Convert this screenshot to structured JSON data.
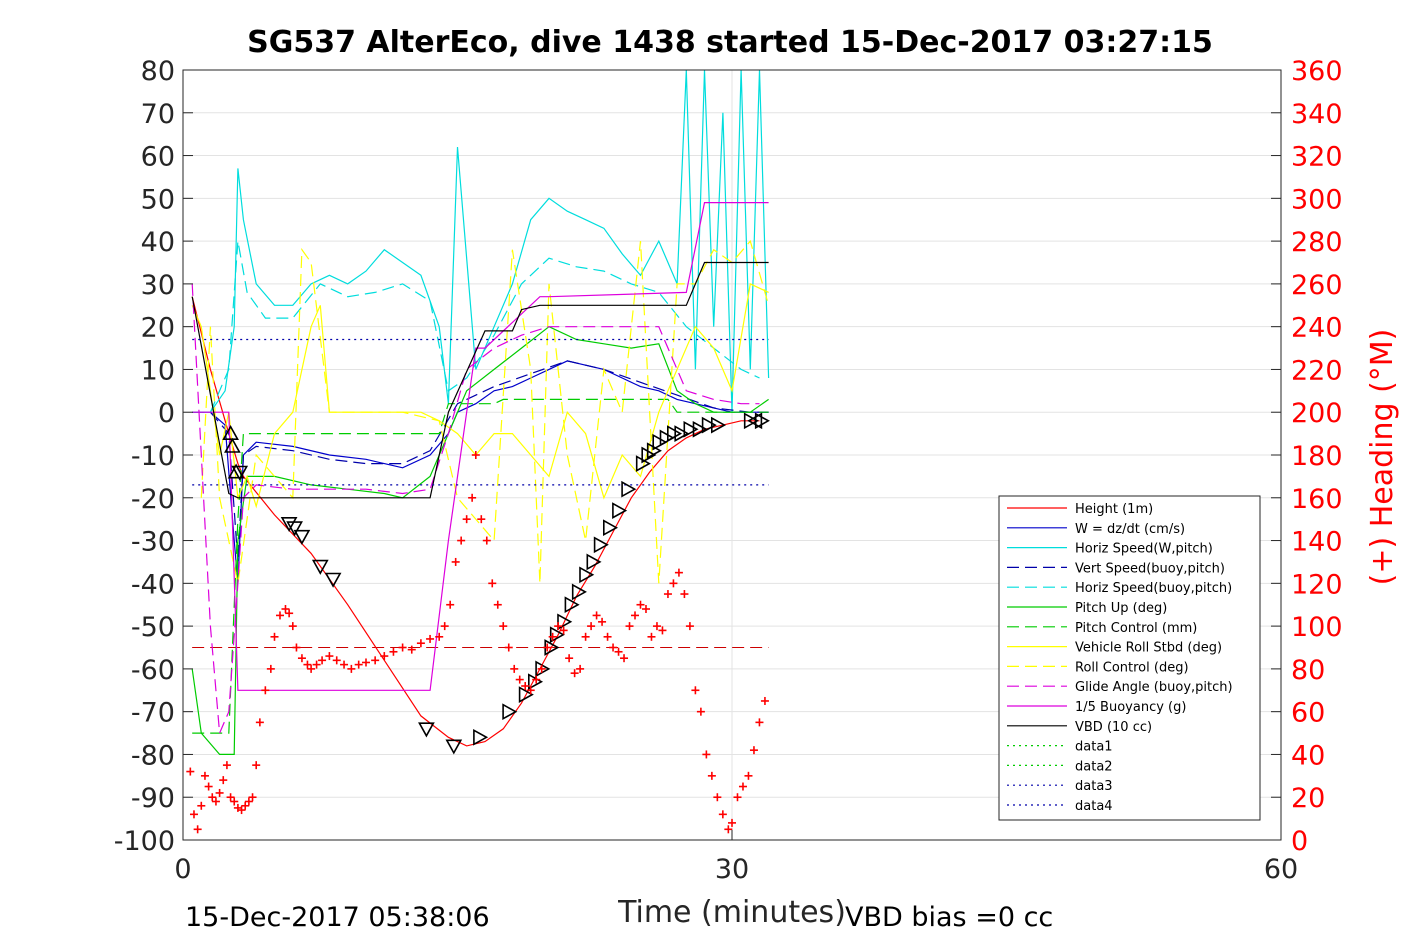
{
  "chart_data": {
    "type": "line",
    "title": "SG537 AlterEco, dive 1438 started 15-Dec-2017 03:27:15",
    "xlabel": "Time (minutes)",
    "ylabel": "",
    "y2label": "(+) Heading (°M)",
    "xlim": [
      0,
      60
    ],
    "ylim": [
      -100,
      80
    ],
    "y2lim": [
      0,
      360
    ],
    "x_ticks": [
      "0",
      "30",
      "60"
    ],
    "y_ticks": [
      "80",
      "70",
      "60",
      "50",
      "40",
      "30",
      "20",
      "10",
      "0",
      "-10",
      "-20",
      "-30",
      "-40",
      "-50",
      "-60",
      "-70",
      "-80",
      "-90",
      "-100"
    ],
    "y2_ticks": [
      "360",
      "340",
      "320",
      "300",
      "280",
      "260",
      "240",
      "220",
      "200",
      "180",
      "160",
      "140",
      "120",
      "100",
      "80",
      "60",
      "40",
      "20",
      "0"
    ],
    "grid": true,
    "legend_position": "bottom-right",
    "footer_left": "15-Dec-2017 05:38:06",
    "footer_right": "VBD bias =0 cc",
    "series": [
      {
        "name": "Height (1m)",
        "color": "#ff0000",
        "dash": "solid",
        "x": [
          0.5,
          1.5,
          2.5,
          3.0,
          3.3,
          5.0,
          7.0,
          9.0,
          11.0,
          13.0,
          14.5,
          15.5,
          16.5,
          17.5,
          18.5,
          19.5,
          20.5,
          21.5,
          22.5,
          23.5,
          24.5,
          25.5,
          26.5,
          27.5,
          28.5,
          29.5,
          30.5,
          31.5
        ],
        "y": [
          27,
          10,
          -5,
          -12,
          -15,
          -24,
          -33,
          -45,
          -58,
          -71,
          -76,
          -78,
          -77,
          -74,
          -68,
          -60,
          -52,
          -43,
          -36,
          -28,
          -20,
          -14,
          -9,
          -6,
          -4,
          -3,
          -2,
          -2
        ]
      },
      {
        "name": "W = dz/dt (cm/s)",
        "color": "#0000cc",
        "dash": "solid",
        "x": [
          0.5,
          1.5,
          2.3,
          2.8,
          3.0,
          3.3,
          4.0,
          6.0,
          8.0,
          10.0,
          11.0,
          12.0,
          13.5,
          14.5,
          15.0,
          16.0,
          17.0,
          18.0,
          19.0,
          20.0,
          21.0,
          22.0,
          23.0,
          24.0,
          25.0,
          26.0,
          27.0,
          28.0,
          29.0,
          30.0,
          31.0,
          32.0
        ],
        "y": [
          0,
          0,
          -3,
          -30,
          -40,
          -10,
          -7,
          -8,
          -10,
          -11,
          -12,
          -13,
          -10,
          -5,
          0,
          2,
          5,
          6,
          8,
          10,
          12,
          11,
          10,
          8,
          6,
          5,
          3,
          2,
          1,
          0,
          0,
          0
        ]
      },
      {
        "name": "Horiz Speed(W,pitch)",
        "color": "#00dddd",
        "dash": "solid",
        "x": [
          0.5,
          1.5,
          2.3,
          2.8,
          3.0,
          3.3,
          4.0,
          5.0,
          6.0,
          7.0,
          8.0,
          9.0,
          10.0,
          11.0,
          12.0,
          13.0,
          14.0,
          14.5,
          15.0,
          16.0,
          17.0,
          18.0,
          19.0,
          20.0,
          21.0,
          22.0,
          23.0,
          24.0,
          25.0,
          26.0,
          27.0,
          27.5,
          28.0,
          28.5,
          29.0,
          29.5,
          30.0,
          30.5,
          31.0,
          31.5,
          32.0
        ],
        "y": [
          0,
          0,
          5,
          20,
          57,
          45,
          30,
          25,
          25,
          30,
          32,
          30,
          33,
          38,
          35,
          32,
          20,
          2,
          62,
          10,
          20,
          30,
          45,
          50,
          47,
          45,
          43,
          37,
          32,
          40,
          30,
          80,
          10,
          80,
          20,
          70,
          0,
          80,
          10,
          80,
          8
        ]
      },
      {
        "name": "Vert Speed(buoy,pitch)",
        "color": "#0000aa",
        "dash": "dashed",
        "x": [
          0.5,
          1.5,
          2.5,
          3.0,
          3.3,
          4.0,
          6.0,
          8.0,
          10.0,
          12.0,
          13.5,
          15.0,
          17.0,
          19.0,
          21.0,
          23.0,
          25.0,
          27.0,
          29.0,
          31.0,
          32.0
        ],
        "y": [
          0,
          0,
          -5,
          -35,
          -10,
          -8,
          -9,
          -11,
          -12,
          -12,
          -9,
          2,
          6,
          9,
          12,
          10,
          7,
          4,
          1,
          0,
          0
        ]
      },
      {
        "name": "Horiz Speed(buoy,pitch)",
        "color": "#00dddd",
        "dash": "dashed",
        "x": [
          0.5,
          1.5,
          2.5,
          3.0,
          3.5,
          4.5,
          6.0,
          7.5,
          9.0,
          10.5,
          12.0,
          13.5,
          14.5,
          15.5,
          17.0,
          18.5,
          20.0,
          21.5,
          23.0,
          24.5,
          26.0,
          27.5,
          29.0,
          30.5,
          31.5
        ],
        "y": [
          0,
          0,
          10,
          40,
          28,
          22,
          22,
          30,
          27,
          28,
          30,
          26,
          5,
          8,
          18,
          30,
          36,
          34,
          33,
          30,
          28,
          20,
          15,
          10,
          8
        ]
      },
      {
        "name": "Pitch Up (deg)",
        "color": "#00cc00",
        "dash": "solid",
        "x": [
          0.5,
          1.0,
          2.0,
          2.8,
          3.0,
          3.5,
          5.0,
          7.0,
          9.0,
          11.0,
          12.0,
          13.5,
          14.5,
          15.5,
          17.0,
          18.5,
          20.0,
          21.5,
          23.0,
          24.5,
          26.0,
          27.0,
          28.0,
          29.0,
          30.0,
          31.0,
          32.0
        ],
        "y": [
          -60,
          -75,
          -80,
          -80,
          -30,
          -15,
          -15,
          -17,
          -18,
          -19,
          -20,
          -15,
          -5,
          5,
          10,
          15,
          20,
          17,
          16,
          15,
          16,
          5,
          2,
          0,
          0,
          0,
          3
        ]
      },
      {
        "name": "Pitch Control (mm)",
        "color": "#00cc00",
        "dash": "dashed",
        "x": [
          0.5,
          2.5,
          3.0,
          3.3,
          14.0,
          14.5,
          17.0,
          17.5,
          26.5,
          27.0,
          32.0
        ],
        "y": [
          -75,
          -75,
          -25,
          -5,
          -5,
          2,
          2,
          3,
          3,
          0,
          0
        ]
      },
      {
        "name": "Vehicle Roll Stbd (deg)",
        "color": "#ffff00",
        "dash": "solid",
        "x": [
          0.5,
          1.0,
          1.5,
          2.0,
          2.5,
          3.0,
          3.5,
          4.0,
          5.0,
          6.0,
          7.0,
          7.5,
          8.0,
          10.0,
          12.0,
          13.0,
          14.0,
          15.0,
          16.0,
          17.0,
          18.0,
          19.0,
          20.0,
          21.0,
          22.0,
          23.0,
          24.0,
          25.0,
          26.0,
          27.0,
          28.0,
          29.0,
          30.0,
          31.0,
          32.0
        ],
        "y": [
          25,
          20,
          5,
          -10,
          0,
          -20,
          -15,
          -22,
          -5,
          0,
          20,
          25,
          0,
          0,
          0,
          0,
          -2,
          -5,
          -10,
          -5,
          -5,
          -10,
          -15,
          0,
          -5,
          -20,
          -10,
          -15,
          0,
          10,
          20,
          15,
          5,
          30,
          28
        ]
      },
      {
        "name": "Roll Control (deg)",
        "color": "#ffff00",
        "dash": "dashed",
        "x": [
          1.0,
          1.5,
          2.0,
          3.0,
          4.0,
          6.0,
          6.5,
          7.0,
          8.0,
          12.0,
          14.0,
          15.0,
          17.0,
          18.0,
          19.0,
          19.5,
          20.0,
          21.0,
          22.0,
          23.0,
          24.0,
          25.0,
          26.0,
          27.0,
          28.0,
          29.0,
          30.0,
          31.0,
          32.0
        ],
        "y": [
          -20,
          20,
          -20,
          -40,
          -10,
          -20,
          38,
          35,
          0,
          0,
          -2,
          -20,
          -30,
          38,
          10,
          -40,
          30,
          -10,
          -30,
          10,
          0,
          40,
          -40,
          30,
          30,
          38,
          35,
          40,
          25
        ]
      },
      {
        "name": "Glide Angle (buoy,pitch)",
        "color": "#dd00dd",
        "dash": "dashed",
        "x": [
          0.5,
          1.5,
          2.0,
          2.5,
          3.0,
          3.3,
          4.0,
          6.0,
          8.0,
          10.0,
          12.0,
          13.5,
          14.5,
          15.5,
          17.0,
          18.5,
          20.0,
          21.5,
          23.0,
          24.5,
          26.0,
          27.5,
          29.0,
          30.5,
          31.5
        ],
        "y": [
          30,
          -50,
          -75,
          -70,
          -40,
          -20,
          -17,
          -18,
          -18,
          -18,
          -19,
          -18,
          -5,
          10,
          15,
          18,
          20,
          20,
          20,
          20,
          20,
          5,
          3,
          2,
          2
        ]
      },
      {
        "name": "1/5 Buoyancy (g)",
        "color": "#dd00dd",
        "dash": "solid",
        "x": [
          0.5,
          2.5,
          3.0,
          13.5,
          14.5,
          16.0,
          16.5,
          19.5,
          20.0,
          27.5,
          28.5,
          32.0
        ],
        "y": [
          0,
          0,
          -65,
          -65,
          -30,
          15,
          15,
          27,
          27,
          28,
          49,
          49
        ]
      },
      {
        "name": "VBD (10 cc)",
        "color": "#000000",
        "dash": "solid",
        "x": [
          0.5,
          2.5,
          3.0,
          13.5,
          14.5,
          16.5,
          18.0,
          18.5,
          19.5,
          20.0,
          27.5,
          28.5,
          32.0
        ],
        "y": [
          27,
          -19,
          -20,
          -20,
          0,
          19,
          19,
          24,
          25,
          25,
          25,
          35,
          35
        ]
      },
      {
        "name": "data1",
        "color": "#00cc00",
        "dash": "dotted",
        "x": [],
        "y": []
      },
      {
        "name": "data2",
        "color": "#00cc00",
        "dash": "dotted",
        "x": [],
        "y": []
      },
      {
        "name": "data3",
        "color": "#0000aa",
        "dash": "dotted",
        "x": [
          0.5,
          32.0
        ],
        "y": [
          17,
          17
        ]
      },
      {
        "name": "data4",
        "color": "#0000aa",
        "dash": "dotted",
        "x": [
          0.5,
          32.0
        ],
        "y": [
          -17,
          -17
        ]
      }
    ],
    "reference_lines": [
      {
        "color": "#cc0000",
        "dash": "dashed",
        "y": -55,
        "x_range": [
          0.5,
          32.0
        ]
      }
    ],
    "height_markers": [
      {
        "x": 2.6,
        "y": -5,
        "dir": "up"
      },
      {
        "x": 2.7,
        "y": -8,
        "dir": "up"
      },
      {
        "x": 2.9,
        "y": -14,
        "dir": "up"
      },
      {
        "x": 3.1,
        "y": -14,
        "dir": "down"
      },
      {
        "x": 5.8,
        "y": -26,
        "dir": "down"
      },
      {
        "x": 6.1,
        "y": -27,
        "dir": "down"
      },
      {
        "x": 6.5,
        "y": -29,
        "dir": "down"
      },
      {
        "x": 7.5,
        "y": -36,
        "dir": "down"
      },
      {
        "x": 8.2,
        "y": -39,
        "dir": "down"
      },
      {
        "x": 13.3,
        "y": -74,
        "dir": "down"
      },
      {
        "x": 14.8,
        "y": -78,
        "dir": "down"
      },
      {
        "x": 16.2,
        "y": -76,
        "dir": "left"
      },
      {
        "x": 17.8,
        "y": -70,
        "dir": "left"
      },
      {
        "x": 18.7,
        "y": -66,
        "dir": "left"
      },
      {
        "x": 19.2,
        "y": -63,
        "dir": "left"
      },
      {
        "x": 19.6,
        "y": -60,
        "dir": "left"
      },
      {
        "x": 20.1,
        "y": -55,
        "dir": "left"
      },
      {
        "x": 20.4,
        "y": -52,
        "dir": "left"
      },
      {
        "x": 20.8,
        "y": -49,
        "dir": "left"
      },
      {
        "x": 21.2,
        "y": -45,
        "dir": "left"
      },
      {
        "x": 21.6,
        "y": -42,
        "dir": "left"
      },
      {
        "x": 22.0,
        "y": -38,
        "dir": "left"
      },
      {
        "x": 22.4,
        "y": -35,
        "dir": "left"
      },
      {
        "x": 22.8,
        "y": -31,
        "dir": "left"
      },
      {
        "x": 23.3,
        "y": -27,
        "dir": "left"
      },
      {
        "x": 23.8,
        "y": -23,
        "dir": "left"
      },
      {
        "x": 24.3,
        "y": -18,
        "dir": "left"
      },
      {
        "x": 25.1,
        "y": -12,
        "dir": "left"
      },
      {
        "x": 25.4,
        "y": -10,
        "dir": "left"
      },
      {
        "x": 25.7,
        "y": -9,
        "dir": "left"
      },
      {
        "x": 26.0,
        "y": -7,
        "dir": "left"
      },
      {
        "x": 26.4,
        "y": -6,
        "dir": "left"
      },
      {
        "x": 26.8,
        "y": -5,
        "dir": "left"
      },
      {
        "x": 27.2,
        "y": -5,
        "dir": "left"
      },
      {
        "x": 27.7,
        "y": -4,
        "dir": "left"
      },
      {
        "x": 28.2,
        "y": -4,
        "dir": "left"
      },
      {
        "x": 28.7,
        "y": -3,
        "dir": "left"
      },
      {
        "x": 29.2,
        "y": -3,
        "dir": "left"
      },
      {
        "x": 31.0,
        "y": -2,
        "dir": "left"
      },
      {
        "x": 31.3,
        "y": -2,
        "dir": "right"
      },
      {
        "x": 31.6,
        "y": -2,
        "dir": "left"
      }
    ],
    "heading_points": {
      "color": "#ff0000",
      "x": [
        0.4,
        0.6,
        0.8,
        1.0,
        1.2,
        1.4,
        1.6,
        1.8,
        2.0,
        2.2,
        2.4,
        2.6,
        2.8,
        3.0,
        3.2,
        3.4,
        3.6,
        3.8,
        4.0,
        4.2,
        4.5,
        4.8,
        5.0,
        5.3,
        5.6,
        5.8,
        6.0,
        6.2,
        6.5,
        6.8,
        7.0,
        7.3,
        7.6,
        8.0,
        8.4,
        8.8,
        9.2,
        9.6,
        10.0,
        10.5,
        11.0,
        11.5,
        12.0,
        12.5,
        13.0,
        13.5,
        14.0,
        14.3,
        14.6,
        14.9,
        15.2,
        15.5,
        15.8,
        16.0,
        16.3,
        16.6,
        16.9,
        17.2,
        17.5,
        17.8,
        18.1,
        18.4,
        18.7,
        19.0,
        19.3,
        19.6,
        19.9,
        20.2,
        20.5,
        20.8,
        21.1,
        21.4,
        21.7,
        22.0,
        22.3,
        22.6,
        22.9,
        23.2,
        23.5,
        23.8,
        24.1,
        24.4,
        24.7,
        25.0,
        25.3,
        25.6,
        25.9,
        26.2,
        26.5,
        26.8,
        27.1,
        27.4,
        27.7,
        28.0,
        28.3,
        28.6,
        28.9,
        29.2,
        29.5,
        29.8,
        30.0,
        30.3,
        30.6,
        30.9,
        31.2,
        31.5,
        31.8
      ],
      "y": [
        32,
        12,
        5,
        16,
        30,
        25,
        20,
        18,
        22,
        28,
        35,
        20,
        18,
        15,
        14,
        16,
        18,
        20,
        35,
        55,
        70,
        80,
        95,
        105,
        108,
        106,
        100,
        90,
        85,
        82,
        80,
        82,
        84,
        86,
        84,
        82,
        80,
        82,
        83,
        84,
        86,
        88,
        90,
        89,
        92,
        94,
        95,
        100,
        110,
        130,
        140,
        150,
        160,
        180,
        150,
        140,
        120,
        110,
        100,
        90,
        80,
        75,
        72,
        70,
        75,
        80,
        90,
        95,
        100,
        98,
        85,
        78,
        80,
        95,
        100,
        105,
        102,
        95,
        90,
        88,
        85,
        100,
        105,
        110,
        108,
        95,
        100,
        98,
        115,
        120,
        125,
        115,
        100,
        70,
        60,
        40,
        30,
        20,
        12,
        5,
        8,
        20,
        25,
        30,
        42,
        55,
        65
      ]
    }
  }
}
